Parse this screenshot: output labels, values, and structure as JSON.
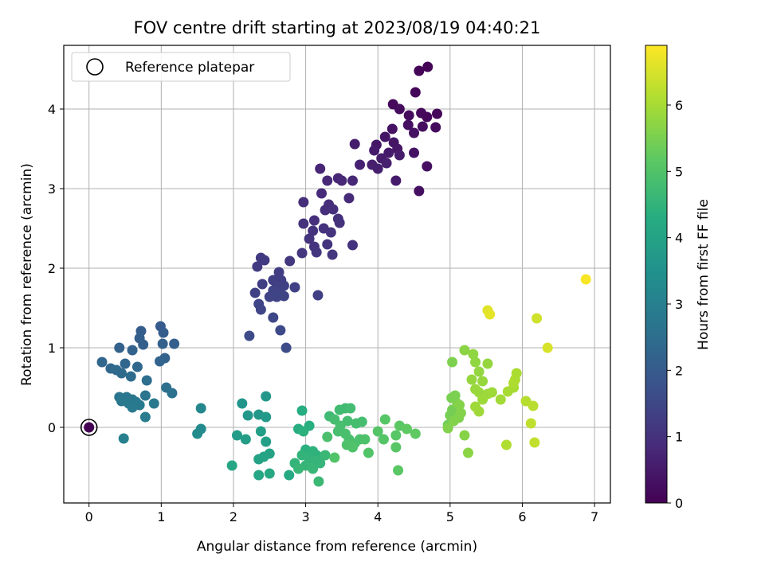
{
  "chart_data": {
    "type": "scatter",
    "title": "FOV centre drift starting at 2023/08/19 04:40:21",
    "xlabel": "Angular distance from reference (arcmin)",
    "ylabel": "Rotation from reference (arcmin)",
    "colorbar_label": "Hours from first FF file",
    "colormap": "viridis",
    "xlim": [
      -0.35,
      7.22
    ],
    "ylim": [
      -0.95,
      4.8
    ],
    "clim": [
      0,
      6.9
    ],
    "xticks": [
      0,
      1,
      2,
      3,
      4,
      5,
      6,
      7
    ],
    "yticks": [
      0,
      1,
      2,
      3,
      4
    ],
    "cticks": [
      0,
      1,
      2,
      3,
      4,
      5,
      6
    ],
    "grid": true,
    "legend": {
      "placement": "top-left",
      "label": "Reference platepar"
    },
    "reference_point": {
      "x": 0,
      "y": 0
    },
    "points": [
      {
        "x": 4.69,
        "y": 4.53,
        "t": 0.05
      },
      {
        "x": 4.57,
        "y": 4.48,
        "t": 0.08
      },
      {
        "x": 4.52,
        "y": 4.21,
        "t": 0.1
      },
      {
        "x": 4.21,
        "y": 4.06,
        "t": 0.15
      },
      {
        "x": 4.3,
        "y": 4.0,
        "t": 0.2
      },
      {
        "x": 4.43,
        "y": 3.92,
        "t": 0.22
      },
      {
        "x": 4.6,
        "y": 3.95,
        "t": 0.18
      },
      {
        "x": 4.68,
        "y": 3.9,
        "t": 0.12
      },
      {
        "x": 4.82,
        "y": 3.94,
        "t": 0.12
      },
      {
        "x": 4.8,
        "y": 3.77,
        "t": 0.2
      },
      {
        "x": 4.62,
        "y": 3.78,
        "t": 0.25
      },
      {
        "x": 4.42,
        "y": 3.8,
        "t": 0.3
      },
      {
        "x": 4.5,
        "y": 3.7,
        "t": 0.32
      },
      {
        "x": 4.2,
        "y": 3.75,
        "t": 0.35
      },
      {
        "x": 4.1,
        "y": 3.65,
        "t": 0.4
      },
      {
        "x": 3.98,
        "y": 3.55,
        "t": 0.42
      },
      {
        "x": 4.22,
        "y": 3.58,
        "t": 0.4
      },
      {
        "x": 4.27,
        "y": 3.5,
        "t": 0.45
      },
      {
        "x": 3.95,
        "y": 3.48,
        "t": 0.5
      },
      {
        "x": 4.15,
        "y": 3.45,
        "t": 0.5
      },
      {
        "x": 4.05,
        "y": 3.38,
        "t": 0.55
      },
      {
        "x": 4.3,
        "y": 3.42,
        "t": 0.52
      },
      {
        "x": 4.5,
        "y": 3.45,
        "t": 0.35
      },
      {
        "x": 3.92,
        "y": 3.3,
        "t": 0.6
      },
      {
        "x": 4.12,
        "y": 3.32,
        "t": 0.6
      },
      {
        "x": 4.0,
        "y": 3.25,
        "t": 0.62
      },
      {
        "x": 3.75,
        "y": 3.3,
        "t": 0.65
      },
      {
        "x": 3.68,
        "y": 3.56,
        "t": 0.55
      },
      {
        "x": 4.68,
        "y": 3.28,
        "t": 0.3
      },
      {
        "x": 4.25,
        "y": 3.1,
        "t": 0.5
      },
      {
        "x": 4.57,
        "y": 2.97,
        "t": 0.3
      },
      {
        "x": 3.2,
        "y": 3.25,
        "t": 0.75
      },
      {
        "x": 3.3,
        "y": 3.1,
        "t": 0.8
      },
      {
        "x": 3.45,
        "y": 3.13,
        "t": 0.75
      },
      {
        "x": 3.5,
        "y": 3.1,
        "t": 0.8
      },
      {
        "x": 3.65,
        "y": 3.1,
        "t": 0.78
      },
      {
        "x": 3.22,
        "y": 2.94,
        "t": 0.85
      },
      {
        "x": 3.6,
        "y": 2.88,
        "t": 0.85
      },
      {
        "x": 2.97,
        "y": 2.83,
        "t": 0.9
      },
      {
        "x": 3.27,
        "y": 2.73,
        "t": 0.9
      },
      {
        "x": 3.32,
        "y": 2.8,
        "t": 0.92
      },
      {
        "x": 3.38,
        "y": 2.74,
        "t": 0.95
      },
      {
        "x": 3.12,
        "y": 2.6,
        "t": 0.95
      },
      {
        "x": 3.45,
        "y": 2.62,
        "t": 0.95
      },
      {
        "x": 3.47,
        "y": 2.57,
        "t": 1.0
      },
      {
        "x": 2.97,
        "y": 2.56,
        "t": 1.0
      },
      {
        "x": 3.1,
        "y": 2.47,
        "t": 1.0
      },
      {
        "x": 3.25,
        "y": 2.5,
        "t": 1.02
      },
      {
        "x": 3.35,
        "y": 2.45,
        "t": 1.02
      },
      {
        "x": 3.05,
        "y": 2.37,
        "t": 1.05
      },
      {
        "x": 3.3,
        "y": 2.3,
        "t": 1.05
      },
      {
        "x": 3.12,
        "y": 2.27,
        "t": 1.05
      },
      {
        "x": 3.15,
        "y": 2.2,
        "t": 1.1
      },
      {
        "x": 2.95,
        "y": 2.19,
        "t": 1.1
      },
      {
        "x": 3.37,
        "y": 2.17,
        "t": 1.1
      },
      {
        "x": 3.65,
        "y": 2.29,
        "t": 1.0
      },
      {
        "x": 2.78,
        "y": 2.09,
        "t": 1.15
      },
      {
        "x": 2.38,
        "y": 2.13,
        "t": 1.2
      },
      {
        "x": 2.43,
        "y": 2.1,
        "t": 1.2
      },
      {
        "x": 2.33,
        "y": 2.02,
        "t": 1.2
      },
      {
        "x": 2.63,
        "y": 1.95,
        "t": 1.25
      },
      {
        "x": 2.55,
        "y": 1.85,
        "t": 1.3
      },
      {
        "x": 2.66,
        "y": 1.85,
        "t": 1.3
      },
      {
        "x": 2.4,
        "y": 1.8,
        "t": 1.3
      },
      {
        "x": 2.6,
        "y": 1.77,
        "t": 1.32
      },
      {
        "x": 2.7,
        "y": 1.78,
        "t": 1.35
      },
      {
        "x": 2.85,
        "y": 1.76,
        "t": 1.35
      },
      {
        "x": 2.3,
        "y": 1.69,
        "t": 1.35
      },
      {
        "x": 2.55,
        "y": 1.72,
        "t": 1.4
      },
      {
        "x": 2.65,
        "y": 1.68,
        "t": 1.4
      },
      {
        "x": 2.5,
        "y": 1.64,
        "t": 1.4
      },
      {
        "x": 2.6,
        "y": 1.64,
        "t": 1.42
      },
      {
        "x": 2.7,
        "y": 1.65,
        "t": 1.42
      },
      {
        "x": 3.17,
        "y": 1.66,
        "t": 1.3
      },
      {
        "x": 2.35,
        "y": 1.55,
        "t": 1.45
      },
      {
        "x": 2.38,
        "y": 1.48,
        "t": 1.45
      },
      {
        "x": 2.55,
        "y": 1.38,
        "t": 1.5
      },
      {
        "x": 2.65,
        "y": 1.22,
        "t": 1.55
      },
      {
        "x": 2.22,
        "y": 1.15,
        "t": 1.6
      },
      {
        "x": 2.73,
        "y": 1.0,
        "t": 1.6
      },
      {
        "x": 0.99,
        "y": 1.27,
        "t": 2.0
      },
      {
        "x": 0.72,
        "y": 1.21,
        "t": 2.05
      },
      {
        "x": 1.03,
        "y": 1.19,
        "t": 2.05
      },
      {
        "x": 0.7,
        "y": 1.12,
        "t": 2.1
      },
      {
        "x": 0.75,
        "y": 1.04,
        "t": 2.1
      },
      {
        "x": 1.02,
        "y": 1.05,
        "t": 2.12
      },
      {
        "x": 1.18,
        "y": 1.05,
        "t": 2.1
      },
      {
        "x": 0.42,
        "y": 1.0,
        "t": 2.15
      },
      {
        "x": 0.6,
        "y": 0.97,
        "t": 2.2
      },
      {
        "x": 1.05,
        "y": 0.87,
        "t": 2.2
      },
      {
        "x": 0.98,
        "y": 0.83,
        "t": 2.25
      },
      {
        "x": 0.18,
        "y": 0.82,
        "t": 2.3
      },
      {
        "x": 0.5,
        "y": 0.8,
        "t": 2.3
      },
      {
        "x": 0.3,
        "y": 0.74,
        "t": 2.35
      },
      {
        "x": 0.67,
        "y": 0.76,
        "t": 2.35
      },
      {
        "x": 0.38,
        "y": 0.72,
        "t": 2.4
      },
      {
        "x": 0.45,
        "y": 0.68,
        "t": 2.4
      },
      {
        "x": 0.58,
        "y": 0.64,
        "t": 2.45
      },
      {
        "x": 0.8,
        "y": 0.59,
        "t": 2.5
      },
      {
        "x": 1.07,
        "y": 0.5,
        "t": 2.55
      },
      {
        "x": 1.15,
        "y": 0.43,
        "t": 2.6
      },
      {
        "x": 0.78,
        "y": 0.4,
        "t": 2.7
      },
      {
        "x": 0.42,
        "y": 0.38,
        "t": 2.7
      },
      {
        "x": 0.52,
        "y": 0.38,
        "t": 2.72
      },
      {
        "x": 0.6,
        "y": 0.35,
        "t": 2.75
      },
      {
        "x": 0.65,
        "y": 0.32,
        "t": 2.78
      },
      {
        "x": 0.45,
        "y": 0.33,
        "t": 2.78
      },
      {
        "x": 0.9,
        "y": 0.3,
        "t": 2.8
      },
      {
        "x": 0.55,
        "y": 0.3,
        "t": 2.8
      },
      {
        "x": 0.7,
        "y": 0.28,
        "t": 2.82
      },
      {
        "x": 0.6,
        "y": 0.25,
        "t": 2.85
      },
      {
        "x": 0.78,
        "y": 0.13,
        "t": 2.9
      },
      {
        "x": 0.48,
        "y": -0.14,
        "t": 3.0
      },
      {
        "x": 1.55,
        "y": 0.24,
        "t": 3.2
      },
      {
        "x": 1.55,
        "y": -0.02,
        "t": 3.3
      },
      {
        "x": 1.5,
        "y": -0.08,
        "t": 3.35
      },
      {
        "x": 2.12,
        "y": 0.3,
        "t": 3.6
      },
      {
        "x": 2.2,
        "y": 0.15,
        "t": 3.65
      },
      {
        "x": 2.35,
        "y": 0.16,
        "t": 3.7
      },
      {
        "x": 2.45,
        "y": 0.39,
        "t": 3.7
      },
      {
        "x": 2.45,
        "y": 0.13,
        "t": 3.75
      },
      {
        "x": 2.05,
        "y": -0.1,
        "t": 3.8
      },
      {
        "x": 2.17,
        "y": -0.15,
        "t": 3.85
      },
      {
        "x": 2.38,
        "y": -0.05,
        "t": 3.9
      },
      {
        "x": 2.45,
        "y": -0.18,
        "t": 3.9
      },
      {
        "x": 2.5,
        "y": -0.33,
        "t": 4.0
      },
      {
        "x": 2.35,
        "y": -0.4,
        "t": 4.0
      },
      {
        "x": 2.42,
        "y": -0.37,
        "t": 4.05
      },
      {
        "x": 1.98,
        "y": -0.48,
        "t": 4.1
      },
      {
        "x": 2.35,
        "y": -0.6,
        "t": 4.1
      },
      {
        "x": 2.5,
        "y": -0.58,
        "t": 4.15
      },
      {
        "x": 2.77,
        "y": -0.6,
        "t": 4.2
      },
      {
        "x": 2.95,
        "y": 0.21,
        "t": 4.3
      },
      {
        "x": 2.9,
        "y": -0.02,
        "t": 4.3
      },
      {
        "x": 3.05,
        "y": 0.02,
        "t": 4.35
      },
      {
        "x": 2.97,
        "y": -0.05,
        "t": 4.4
      },
      {
        "x": 3.0,
        "y": -0.28,
        "t": 4.4
      },
      {
        "x": 3.1,
        "y": -0.3,
        "t": 4.45
      },
      {
        "x": 3.15,
        "y": -0.35,
        "t": 4.45
      },
      {
        "x": 2.95,
        "y": -0.35,
        "t": 4.5
      },
      {
        "x": 3.05,
        "y": -0.4,
        "t": 4.5
      },
      {
        "x": 2.85,
        "y": -0.45,
        "t": 4.52
      },
      {
        "x": 3.15,
        "y": -0.42,
        "t": 4.55
      },
      {
        "x": 3.2,
        "y": -0.45,
        "t": 4.55
      },
      {
        "x": 3.0,
        "y": -0.48,
        "t": 4.58
      },
      {
        "x": 2.9,
        "y": -0.52,
        "t": 4.6
      },
      {
        "x": 3.1,
        "y": -0.52,
        "t": 4.6
      },
      {
        "x": 3.27,
        "y": -0.35,
        "t": 4.62
      },
      {
        "x": 3.18,
        "y": -0.68,
        "t": 4.65
      },
      {
        "x": 3.33,
        "y": 0.14,
        "t": 4.7
      },
      {
        "x": 3.47,
        "y": 0.22,
        "t": 4.75
      },
      {
        "x": 3.55,
        "y": 0.24,
        "t": 4.75
      },
      {
        "x": 3.62,
        "y": 0.24,
        "t": 4.78
      },
      {
        "x": 3.4,
        "y": 0.1,
        "t": 4.8
      },
      {
        "x": 3.58,
        "y": 0.08,
        "t": 4.8
      },
      {
        "x": 3.7,
        "y": 0.05,
        "t": 4.82
      },
      {
        "x": 3.78,
        "y": 0.07,
        "t": 4.82
      },
      {
        "x": 3.48,
        "y": 0.02,
        "t": 4.85
      },
      {
        "x": 3.45,
        "y": -0.05,
        "t": 4.85
      },
      {
        "x": 3.55,
        "y": -0.08,
        "t": 4.88
      },
      {
        "x": 3.3,
        "y": -0.12,
        "t": 4.9
      },
      {
        "x": 3.6,
        "y": -0.15,
        "t": 4.9
      },
      {
        "x": 3.68,
        "y": -0.2,
        "t": 4.92
      },
      {
        "x": 3.75,
        "y": -0.15,
        "t": 4.92
      },
      {
        "x": 3.82,
        "y": -0.15,
        "t": 4.95
      },
      {
        "x": 3.57,
        "y": -0.22,
        "t": 4.95
      },
      {
        "x": 3.65,
        "y": -0.25,
        "t": 4.98
      },
      {
        "x": 3.4,
        "y": -0.38,
        "t": 5.0
      },
      {
        "x": 3.87,
        "y": -0.32,
        "t": 5.0
      },
      {
        "x": 4.0,
        "y": -0.05,
        "t": 5.05
      },
      {
        "x": 4.08,
        "y": -0.15,
        "t": 5.05
      },
      {
        "x": 4.1,
        "y": 0.1,
        "t": 5.1
      },
      {
        "x": 4.25,
        "y": -0.1,
        "t": 5.1
      },
      {
        "x": 4.25,
        "y": -0.25,
        "t": 5.12
      },
      {
        "x": 4.3,
        "y": 0.02,
        "t": 5.15
      },
      {
        "x": 4.4,
        "y": -0.02,
        "t": 5.2
      },
      {
        "x": 4.52,
        "y": -0.08,
        "t": 5.2
      },
      {
        "x": 4.28,
        "y": -0.54,
        "t": 5.15
      },
      {
        "x": 4.97,
        "y": 0.03,
        "t": 5.4
      },
      {
        "x": 5.0,
        "y": 0.15,
        "t": 5.45
      },
      {
        "x": 5.03,
        "y": 0.22,
        "t": 5.45
      },
      {
        "x": 5.02,
        "y": 0.37,
        "t": 5.5
      },
      {
        "x": 5.07,
        "y": 0.4,
        "t": 5.5
      },
      {
        "x": 5.03,
        "y": 0.82,
        "t": 5.55
      },
      {
        "x": 5.1,
        "y": 0.3,
        "t": 5.55
      },
      {
        "x": 5.12,
        "y": 0.12,
        "t": 5.58
      },
      {
        "x": 5.05,
        "y": 0.08,
        "t": 5.6
      },
      {
        "x": 4.97,
        "y": -0.01,
        "t": 5.6
      },
      {
        "x": 5.15,
        "y": 0.18,
        "t": 5.6
      },
      {
        "x": 5.13,
        "y": 0.28,
        "t": 5.62
      },
      {
        "x": 5.2,
        "y": -0.1,
        "t": 5.65
      },
      {
        "x": 5.25,
        "y": -0.32,
        "t": 5.7
      },
      {
        "x": 5.2,
        "y": 0.97,
        "t": 5.7
      },
      {
        "x": 5.32,
        "y": 0.92,
        "t": 5.75
      },
      {
        "x": 5.35,
        "y": 0.82,
        "t": 5.75
      },
      {
        "x": 5.4,
        "y": 0.7,
        "t": 5.78
      },
      {
        "x": 5.3,
        "y": 0.6,
        "t": 5.8
      },
      {
        "x": 5.52,
        "y": 0.8,
        "t": 5.8
      },
      {
        "x": 5.45,
        "y": 0.58,
        "t": 5.82
      },
      {
        "x": 5.35,
        "y": 0.48,
        "t": 5.85
      },
      {
        "x": 5.4,
        "y": 0.44,
        "t": 5.85
      },
      {
        "x": 5.52,
        "y": 0.42,
        "t": 5.88
      },
      {
        "x": 5.58,
        "y": 0.44,
        "t": 5.9
      },
      {
        "x": 5.45,
        "y": 0.35,
        "t": 5.9
      },
      {
        "x": 5.35,
        "y": 0.26,
        "t": 5.92
      },
      {
        "x": 5.4,
        "y": 0.2,
        "t": 5.92
      },
      {
        "x": 5.7,
        "y": 0.35,
        "t": 5.95
      },
      {
        "x": 5.8,
        "y": 0.45,
        "t": 6.0
      },
      {
        "x": 5.88,
        "y": 0.5,
        "t": 6.0
      },
      {
        "x": 5.9,
        "y": 0.6,
        "t": 6.05
      },
      {
        "x": 5.92,
        "y": 0.68,
        "t": 6.05
      },
      {
        "x": 5.88,
        "y": 0.56,
        "t": 6.08
      },
      {
        "x": 5.78,
        "y": -0.22,
        "t": 6.1
      },
      {
        "x": 6.05,
        "y": 0.33,
        "t": 6.15
      },
      {
        "x": 6.15,
        "y": 0.27,
        "t": 6.2
      },
      {
        "x": 6.12,
        "y": 0.05,
        "t": 6.25
      },
      {
        "x": 6.17,
        "y": -0.19,
        "t": 6.3
      },
      {
        "x": 6.2,
        "y": 1.37,
        "t": 6.4
      },
      {
        "x": 6.35,
        "y": 1.0,
        "t": 6.5
      },
      {
        "x": 5.52,
        "y": 1.47,
        "t": 6.6
      },
      {
        "x": 5.55,
        "y": 1.42,
        "t": 6.65
      },
      {
        "x": 6.88,
        "y": 1.86,
        "t": 6.85
      }
    ]
  }
}
